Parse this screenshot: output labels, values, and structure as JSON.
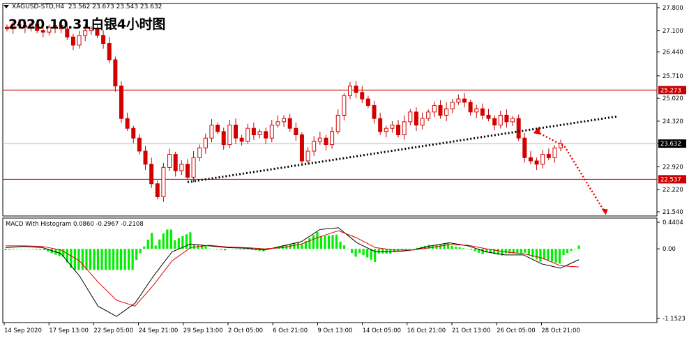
{
  "header": {
    "symbol": "XAGUSD-STD,H4",
    "ohlc": "23.562 23.673 23.543 23.632"
  },
  "title": "2020.10.31白银4小时图",
  "macd": {
    "label": "MACD With Histogram 0.0860 -0.2967 -0.2108",
    "ylim": [
      -1.1523,
      0.4404
    ],
    "ticks": [
      "0.4404",
      "0.00",
      "-1.1523"
    ],
    "macd_line": [
      0.02,
      0.04,
      0.02,
      -0.08,
      -0.45,
      -0.95,
      -1.12,
      -0.9,
      -0.45,
      -0.05,
      0.08,
      0.05,
      0.02,
      0.01,
      -0.02,
      0.05,
      0.12,
      0.32,
      0.35,
      0.1,
      -0.05,
      -0.05,
      -0.02,
      0.05,
      0.1,
      0.05,
      -0.05,
      -0.1,
      -0.1,
      -0.25,
      -0.32,
      -0.18
    ],
    "signal_line": [
      0.05,
      0.05,
      0.04,
      -0.02,
      -0.2,
      -0.55,
      -0.85,
      -0.95,
      -0.6,
      -0.2,
      0.02,
      0.06,
      0.03,
      0.02,
      0.0,
      0.02,
      0.08,
      0.2,
      0.3,
      0.18,
      0.02,
      -0.02,
      -0.02,
      0.02,
      0.07,
      0.06,
      0.0,
      -0.05,
      -0.08,
      -0.15,
      -0.28,
      -0.3
    ],
    "colors": {
      "histogram": "#00ee00",
      "macd": "#000000",
      "signal": "#dd0000"
    }
  },
  "chart_data": {
    "type": "candlestick",
    "symbol": "XAGUSD-STD",
    "timeframe": "H4",
    "ylim": [
      21.54,
      27.8
    ],
    "y_ticks": [
      "27.800",
      "27.100",
      "26.440",
      "25.710",
      "25.020",
      "24.320",
      "23.632",
      "22.920",
      "22.220",
      "21.540"
    ],
    "x_labels": [
      "14 Sep 2020",
      "17 Sep 13:00",
      "22 Sep 05:00",
      "24 Sep 21:00",
      "29 Sep 13:00",
      "2 Oct 05:00",
      "6 Oct 21:00",
      "9 Oct 13:00",
      "14 Oct 05:00",
      "16 Oct 21:00",
      "21 Oct 13:00",
      "26 Oct 05:00",
      "28 Oct 21:00"
    ],
    "closes": [
      27.15,
      27.3,
      27.25,
      27.2,
      27.3,
      27.1,
      27.05,
      27.2,
      27.25,
      27.15,
      26.9,
      26.65,
      26.95,
      27.1,
      27.15,
      26.95,
      26.7,
      26.2,
      25.4,
      24.4,
      24.1,
      23.8,
      23.4,
      23.0,
      22.4,
      22.0,
      22.9,
      23.3,
      22.8,
      23.0,
      22.6,
      23.2,
      23.5,
      23.8,
      24.2,
      24.0,
      23.6,
      24.2,
      23.8,
      23.7,
      24.1,
      23.9,
      24.0,
      23.8,
      24.2,
      24.3,
      24.4,
      24.1,
      23.9,
      23.1,
      23.4,
      23.7,
      23.8,
      23.6,
      24.0,
      24.5,
      25.1,
      25.4,
      25.2,
      25.0,
      24.8,
      24.4,
      24.0,
      24.1,
      24.2,
      23.9,
      24.3,
      24.6,
      24.2,
      24.4,
      24.6,
      24.8,
      24.5,
      24.7,
      24.9,
      25.0,
      24.9,
      24.6,
      24.7,
      24.5,
      24.4,
      24.2,
      24.5,
      24.3,
      24.4,
      23.8,
      23.2,
      23.1,
      23.0,
      23.3,
      23.2,
      23.5,
      23.632
    ],
    "horizontal_lines": [
      {
        "label": "25.273",
        "value": 25.273,
        "color": "#cc0000"
      },
      {
        "label": "22.537",
        "value": 22.537,
        "color": "#cc0000"
      },
      {
        "label": "23.632",
        "value": 23.632,
        "color": "#000000"
      }
    ],
    "trendline": {
      "from_index": 30,
      "from_value": 22.45,
      "to_index": 92,
      "to_value": 24.42,
      "style": "dotted"
    },
    "projection_arrow": {
      "from_index": 88,
      "from_value": 24.08,
      "mid_index": 91,
      "mid_value": 23.55,
      "to_index": 96,
      "to_value": 21.55,
      "color": "#ee0000"
    },
    "colors": {
      "candle_body": "#d40000",
      "wick": "#c00000",
      "grid": "#c0c0c0"
    }
  }
}
